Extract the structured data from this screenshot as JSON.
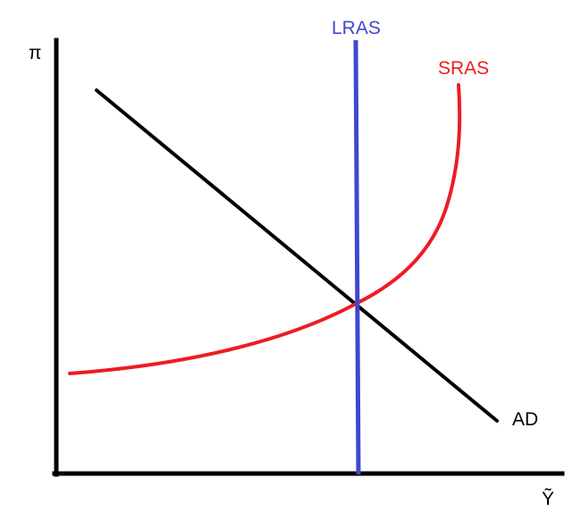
{
  "axes": {
    "y_label": "π",
    "x_label": "Ỹ",
    "color": "#000000"
  },
  "curves": {
    "lras": {
      "label": "LRAS",
      "color": "#3f48cc"
    },
    "sras": {
      "label": "SRAS",
      "color": "#ed1c24"
    },
    "ad": {
      "label": "AD",
      "color": "#000000"
    }
  }
}
